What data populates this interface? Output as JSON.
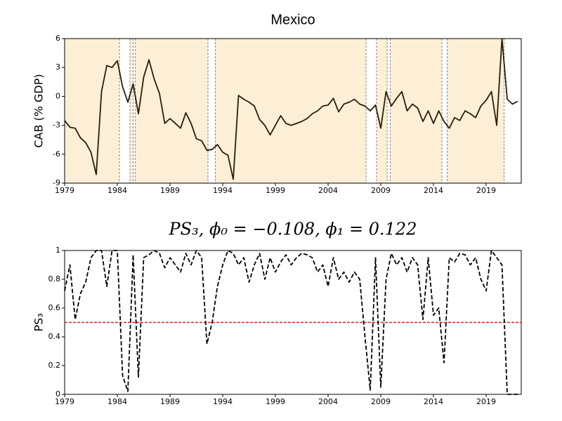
{
  "chart_data": [
    {
      "type": "line",
      "title": "Mexico",
      "y_label": "CAB (% GDP)",
      "color": "#2a1d0a",
      "linestyle": "solid",
      "xlim": [
        1979,
        2022.33
      ],
      "xticks": [
        1979,
        1984,
        1989,
        1994,
        1999,
        2004,
        2009,
        2014,
        2019
      ],
      "ylim": [
        -9,
        6
      ],
      "yticks": [
        -9,
        -6,
        -3,
        0,
        3,
        6
      ],
      "shaded_regions": [
        [
          1979,
          1984.2
        ],
        [
          1985.2,
          1985.5
        ],
        [
          1985.7,
          1992.6
        ],
        [
          1993.3,
          2007.6
        ],
        [
          2008.6,
          2009.6
        ],
        [
          2009.9,
          2014.8
        ],
        [
          2015.3,
          2020.7
        ]
      ],
      "shade_color": "#fdefd6",
      "x": [
        1979,
        1979.5,
        1980,
        1980.5,
        1981,
        1981.5,
        1982,
        1982.5,
        1983,
        1983.5,
        1984,
        1984.5,
        1985,
        1985.5,
        1986,
        1986.5,
        1987,
        1987.5,
        1988,
        1988.5,
        1989,
        1989.5,
        1990,
        1990.5,
        1991,
        1991.5,
        1992,
        1992.5,
        1993,
        1993.5,
        1994,
        1994.5,
        1995,
        1995.5,
        1996,
        1996.5,
        1997,
        1997.5,
        1998,
        1998.5,
        1999,
        1999.5,
        2000,
        2000.5,
        2001,
        2001.5,
        2002,
        2002.5,
        2003,
        2003.5,
        2004,
        2004.5,
        2005,
        2005.5,
        2006,
        2006.5,
        2007,
        2007.5,
        2008,
        2008.5,
        2009,
        2009.5,
        2010,
        2010.5,
        2011,
        2011.5,
        2012,
        2012.5,
        2013,
        2013.5,
        2014,
        2014.5,
        2015,
        2015.5,
        2016,
        2016.5,
        2017,
        2017.5,
        2018,
        2018.5,
        2019,
        2019.5,
        2020,
        2020.5,
        2021,
        2021.5,
        2022
      ],
      "values": [
        -2.5,
        -3.2,
        -3.3,
        -4.3,
        -4.8,
        -5.8,
        -8.1,
        0.5,
        3.2,
        3.0,
        3.7,
        1.0,
        -0.6,
        1.3,
        -1.8,
        2.0,
        3.8,
        1.8,
        0.3,
        -2.8,
        -2.3,
        -2.8,
        -3.3,
        -1.7,
        -2.8,
        -4.4,
        -4.6,
        -5.6,
        -5.5,
        -5.0,
        -5.8,
        -6.1,
        -8.6,
        0.1,
        -0.3,
        -0.6,
        -1.0,
        -2.4,
        -3.0,
        -4.0,
        -3.0,
        -2.0,
        -2.8,
        -3.0,
        -2.8,
        -2.6,
        -2.3,
        -1.8,
        -1.5,
        -1.0,
        -0.9,
        -0.2,
        -1.6,
        -0.8,
        -0.6,
        -0.3,
        -0.8,
        -1.0,
        -1.5,
        -0.9,
        -3.3,
        0.5,
        -1.0,
        -0.2,
        0.5,
        -1.5,
        -0.8,
        -1.2,
        -2.6,
        -1.5,
        -2.8,
        -1.5,
        -2.6,
        -3.3,
        -2.2,
        -2.5,
        -1.5,
        -1.8,
        -2.2,
        -1.0,
        -0.4,
        0.5,
        -3.0,
        6.0,
        -0.3,
        -0.8,
        -0.5
      ]
    },
    {
      "type": "line",
      "title": "PS₃, ϕ₀ = −0.108, ϕ₁ = 0.122",
      "y_label": "PS₃",
      "color": "#000000",
      "linestyle": "dashed",
      "xlim": [
        1979,
        2022.33
      ],
      "xticks": [
        1979,
        1984,
        1989,
        1994,
        1999,
        2004,
        2009,
        2014,
        2019
      ],
      "ylim": [
        0,
        1
      ],
      "yticks": [
        0,
        0.2,
        0.4,
        0.6,
        0.8,
        1
      ],
      "threshold": 0.5,
      "threshold_color": "#e41a1c",
      "x": [
        1979,
        1979.5,
        1980,
        1980.5,
        1981,
        1981.5,
        1982,
        1982.5,
        1983,
        1983.5,
        1984,
        1984.5,
        1985,
        1985.5,
        1986,
        1986.5,
        1987,
        1987.5,
        1988,
        1988.5,
        1989,
        1989.5,
        1990,
        1990.5,
        1991,
        1991.5,
        1992,
        1992.5,
        1993,
        1993.5,
        1994,
        1994.5,
        1995,
        1995.5,
        1996,
        1996.5,
        1997,
        1997.5,
        1998,
        1998.5,
        1999,
        1999.5,
        2000,
        2000.5,
        2001,
        2001.5,
        2002,
        2002.5,
        2003,
        2003.5,
        2004,
        2004.5,
        2005,
        2005.5,
        2006,
        2006.5,
        2007,
        2007.5,
        2008,
        2008.5,
        2009,
        2009.5,
        2010,
        2010.5,
        2011,
        2011.5,
        2012,
        2012.5,
        2013,
        2013.5,
        2014,
        2014.5,
        2015,
        2015.5,
        2016,
        2016.5,
        2017,
        2017.5,
        2018,
        2018.5,
        2019,
        2019.5,
        2020,
        2020.5,
        2021,
        2021.5,
        2022
      ],
      "values": [
        0.72,
        0.9,
        0.52,
        0.7,
        0.78,
        0.95,
        1.0,
        1.0,
        0.75,
        1.0,
        1.0,
        0.13,
        0.02,
        0.97,
        0.12,
        0.95,
        0.97,
        1.0,
        0.98,
        0.88,
        0.95,
        0.9,
        0.85,
        0.98,
        0.9,
        1.0,
        0.95,
        0.35,
        0.5,
        0.75,
        0.9,
        1.0,
        0.98,
        0.9,
        0.95,
        0.78,
        0.9,
        0.98,
        0.8,
        0.95,
        0.85,
        0.92,
        0.97,
        0.9,
        0.95,
        0.98,
        0.97,
        0.95,
        0.85,
        0.9,
        0.75,
        0.95,
        0.8,
        0.85,
        0.78,
        0.85,
        0.8,
        0.4,
        0.03,
        0.95,
        0.05,
        0.8,
        0.98,
        0.9,
        0.95,
        0.85,
        0.95,
        0.9,
        0.52,
        0.95,
        0.55,
        0.6,
        0.22,
        0.95,
        0.92,
        0.98,
        0.97,
        0.9,
        0.95,
        0.8,
        0.72,
        1.0,
        0.95,
        0.9,
        0.0,
        0.0,
        0.0
      ]
    }
  ]
}
